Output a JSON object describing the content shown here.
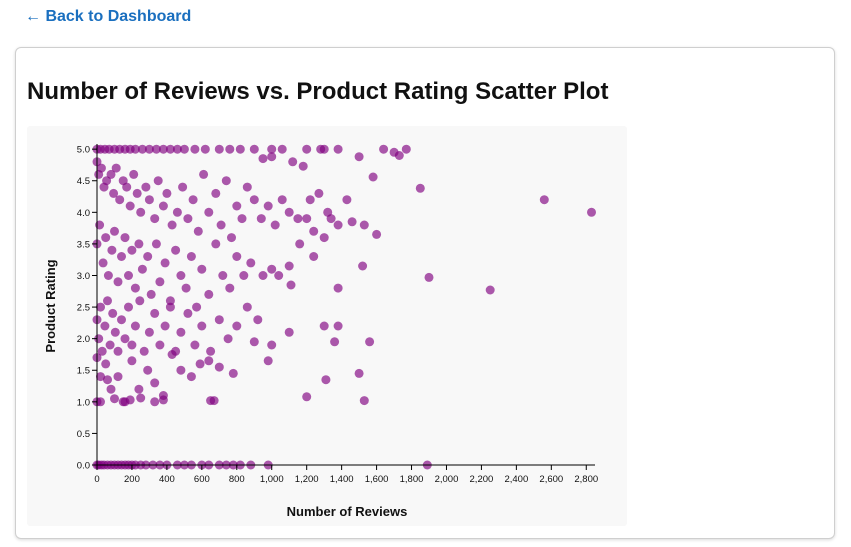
{
  "nav": {
    "back_label": "← Back to Dashboard"
  },
  "chart_data": {
    "type": "scatter",
    "title": "Number of Reviews vs. Product Rating Scatter Plot",
    "xlabel": "Number of Reviews",
    "ylabel": "Product Rating",
    "xlim": [
      0,
      2850
    ],
    "ylim": [
      0,
      5.05
    ],
    "x_ticks": [
      0,
      200,
      400,
      600,
      800,
      1000,
      1200,
      1400,
      1600,
      1800,
      2000,
      2200,
      2400,
      2600,
      2800
    ],
    "x_tick_labels": [
      "0",
      "200",
      "400",
      "600",
      "800",
      "1,000",
      "1,200",
      "1,400",
      "1,600",
      "1,800",
      "2,000",
      "2,200",
      "2,400",
      "2,600",
      "2,800"
    ],
    "y_ticks": [
      0,
      0.5,
      1,
      1.5,
      2,
      2.5,
      3,
      3.5,
      4,
      4.5,
      5
    ],
    "y_tick_labels": [
      "0.0",
      "0.5",
      "1.0",
      "1.5",
      "2.0",
      "2.5",
      "3.0",
      "3.5",
      "4.0",
      "4.5",
      "5.0"
    ],
    "grid": false,
    "point_color": "#800080",
    "background_color": "#f8f8f8",
    "points": [
      [
        0,
        5.0
      ],
      [
        20,
        5.0
      ],
      [
        45,
        5.0
      ],
      [
        70,
        5.0
      ],
      [
        100,
        5.0
      ],
      [
        130,
        5.0
      ],
      [
        160,
        5.0
      ],
      [
        190,
        5.0
      ],
      [
        220,
        5.0
      ],
      [
        260,
        5.0
      ],
      [
        300,
        5.0
      ],
      [
        340,
        5.0
      ],
      [
        380,
        5.0
      ],
      [
        420,
        5.0
      ],
      [
        460,
        5.0
      ],
      [
        500,
        5.0
      ],
      [
        560,
        5.0
      ],
      [
        620,
        5.0
      ],
      [
        700,
        5.0
      ],
      [
        760,
        5.0
      ],
      [
        820,
        5.0
      ],
      [
        900,
        5.0
      ],
      [
        1000,
        5.0
      ],
      [
        1060,
        5.0
      ],
      [
        1200,
        5.0
      ],
      [
        1280,
        5.0
      ],
      [
        1300,
        5.0
      ],
      [
        1380,
        5.0
      ],
      [
        1640,
        5.0
      ],
      [
        1700,
        4.95
      ],
      [
        1770,
        5.0
      ],
      [
        1730,
        4.9
      ],
      [
        1500,
        4.88
      ],
      [
        1120,
        4.8
      ],
      [
        1000,
        4.88
      ],
      [
        950,
        4.85
      ],
      [
        1180,
        4.73
      ],
      [
        1580,
        4.56
      ],
      [
        1850,
        4.38
      ],
      [
        1270,
        4.3
      ],
      [
        1220,
        4.2
      ],
      [
        1430,
        4.2
      ],
      [
        2560,
        4.2
      ],
      [
        2830,
        4.0
      ],
      [
        0,
        4.8
      ],
      [
        10,
        4.6
      ],
      [
        25,
        4.7
      ],
      [
        40,
        4.4
      ],
      [
        55,
        4.5
      ],
      [
        80,
        4.6
      ],
      [
        95,
        4.3
      ],
      [
        110,
        4.7
      ],
      [
        130,
        4.2
      ],
      [
        150,
        4.5
      ],
      [
        170,
        4.4
      ],
      [
        190,
        4.1
      ],
      [
        210,
        4.6
      ],
      [
        230,
        4.3
      ],
      [
        250,
        4.0
      ],
      [
        280,
        4.4
      ],
      [
        300,
        4.2
      ],
      [
        330,
        3.9
      ],
      [
        350,
        4.5
      ],
      [
        380,
        4.1
      ],
      [
        400,
        4.3
      ],
      [
        430,
        3.8
      ],
      [
        460,
        4.0
      ],
      [
        490,
        4.4
      ],
      [
        520,
        3.9
      ],
      [
        550,
        4.2
      ],
      [
        580,
        3.7
      ],
      [
        610,
        4.6
      ],
      [
        640,
        4.0
      ],
      [
        680,
        4.3
      ],
      [
        710,
        3.8
      ],
      [
        740,
        4.5
      ],
      [
        770,
        3.6
      ],
      [
        800,
        4.1
      ],
      [
        830,
        3.9
      ],
      [
        860,
        4.4
      ],
      [
        900,
        4.2
      ],
      [
        940,
        3.9
      ],
      [
        980,
        4.1
      ],
      [
        1020,
        3.8
      ],
      [
        1060,
        4.2
      ],
      [
        1100,
        4.0
      ],
      [
        1150,
        3.9
      ],
      [
        1240,
        3.7
      ],
      [
        1300,
        3.6
      ],
      [
        1340,
        3.9
      ],
      [
        1380,
        3.8
      ],
      [
        1460,
        3.85
      ],
      [
        1530,
        3.8
      ],
      [
        1600,
        3.65
      ],
      [
        1320,
        4.0
      ],
      [
        1200,
        3.9
      ],
      [
        0,
        3.5
      ],
      [
        15,
        3.8
      ],
      [
        35,
        3.2
      ],
      [
        50,
        3.6
      ],
      [
        65,
        3.0
      ],
      [
        85,
        3.4
      ],
      [
        100,
        3.7
      ],
      [
        120,
        2.9
      ],
      [
        140,
        3.3
      ],
      [
        160,
        3.6
      ],
      [
        180,
        3.0
      ],
      [
        200,
        3.4
      ],
      [
        220,
        2.8
      ],
      [
        240,
        3.5
      ],
      [
        260,
        3.1
      ],
      [
        290,
        3.3
      ],
      [
        310,
        2.7
      ],
      [
        340,
        3.5
      ],
      [
        360,
        2.9
      ],
      [
        390,
        3.2
      ],
      [
        420,
        2.6
      ],
      [
        450,
        3.4
      ],
      [
        480,
        3.0
      ],
      [
        510,
        2.8
      ],
      [
        540,
        3.3
      ],
      [
        570,
        2.5
      ],
      [
        600,
        3.1
      ],
      [
        640,
        2.7
      ],
      [
        680,
        3.5
      ],
      [
        720,
        3.0
      ],
      [
        760,
        2.8
      ],
      [
        800,
        3.3
      ],
      [
        840,
        3.0
      ],
      [
        880,
        3.2
      ],
      [
        950,
        3.0
      ],
      [
        1000,
        3.1
      ],
      [
        1040,
        3.0
      ],
      [
        1100,
        3.15
      ],
      [
        1160,
        3.5
      ],
      [
        1240,
        3.3
      ],
      [
        1520,
        3.15
      ],
      [
        1380,
        2.8
      ],
      [
        1110,
        2.85
      ],
      [
        1900,
        2.97
      ],
      [
        2250,
        2.77
      ],
      [
        0,
        2.3
      ],
      [
        10,
        2.0
      ],
      [
        20,
        2.5
      ],
      [
        30,
        1.8
      ],
      [
        45,
        2.2
      ],
      [
        60,
        2.6
      ],
      [
        75,
        1.9
      ],
      [
        90,
        2.4
      ],
      [
        105,
        2.1
      ],
      [
        120,
        1.8
      ],
      [
        140,
        2.3
      ],
      [
        160,
        2.0
      ],
      [
        180,
        2.5
      ],
      [
        200,
        1.9
      ],
      [
        220,
        2.2
      ],
      [
        245,
        2.6
      ],
      [
        270,
        1.8
      ],
      [
        300,
        2.1
      ],
      [
        330,
        2.4
      ],
      [
        360,
        1.9
      ],
      [
        390,
        2.2
      ],
      [
        420,
        2.5
      ],
      [
        450,
        1.8
      ],
      [
        480,
        2.1
      ],
      [
        520,
        2.4
      ],
      [
        560,
        1.9
      ],
      [
        600,
        2.2
      ],
      [
        650,
        1.8
      ],
      [
        700,
        2.3
      ],
      [
        750,
        2.0
      ],
      [
        800,
        2.2
      ],
      [
        860,
        2.5
      ],
      [
        900,
        1.95
      ],
      [
        920,
        2.3
      ],
      [
        1000,
        1.9
      ],
      [
        1100,
        2.1
      ],
      [
        1300,
        2.2
      ],
      [
        1380,
        2.2
      ],
      [
        1360,
        1.95
      ],
      [
        1560,
        1.95
      ],
      [
        980,
        1.65
      ],
      [
        0,
        1.7
      ],
      [
        20,
        1.4
      ],
      [
        50,
        1.6
      ],
      [
        80,
        1.2
      ],
      [
        120,
        1.4
      ],
      [
        160,
        1.0
      ],
      [
        200,
        1.65
      ],
      [
        240,
        1.2
      ],
      [
        290,
        1.5
      ],
      [
        330,
        1.3
      ],
      [
        380,
        1.1
      ],
      [
        430,
        1.75
      ],
      [
        480,
        1.5
      ],
      [
        540,
        1.4
      ],
      [
        590,
        1.6
      ],
      [
        640,
        1.65
      ],
      [
        700,
        1.55
      ],
      [
        780,
        1.45
      ],
      [
        1310,
        1.35
      ],
      [
        1500,
        1.45
      ],
      [
        1200,
        1.08
      ],
      [
        1530,
        1.02
      ],
      [
        0,
        1.0
      ],
      [
        20,
        1.0
      ],
      [
        60,
        1.35
      ],
      [
        100,
        1.05
      ],
      [
        150,
        1.0
      ],
      [
        190,
        1.03
      ],
      [
        250,
        1.06
      ],
      [
        330,
        1.0
      ],
      [
        380,
        1.03
      ],
      [
        650,
        1.02
      ],
      [
        670,
        1.02
      ],
      [
        0,
        0.0
      ],
      [
        10,
        0.0
      ],
      [
        25,
        0.0
      ],
      [
        40,
        0.0
      ],
      [
        60,
        0.0
      ],
      [
        80,
        0.0
      ],
      [
        100,
        0.0
      ],
      [
        120,
        0.0
      ],
      [
        140,
        0.0
      ],
      [
        160,
        0.0
      ],
      [
        180,
        0.0
      ],
      [
        200,
        0.0
      ],
      [
        220,
        0.0
      ],
      [
        250,
        0.0
      ],
      [
        280,
        0.0
      ],
      [
        320,
        0.0
      ],
      [
        360,
        0.0
      ],
      [
        400,
        0.0
      ],
      [
        460,
        0.0
      ],
      [
        500,
        0.0
      ],
      [
        540,
        0.0
      ],
      [
        600,
        0.0
      ],
      [
        640,
        0.0
      ],
      [
        700,
        0.0
      ],
      [
        740,
        0.0
      ],
      [
        780,
        0.0
      ],
      [
        820,
        0.0
      ],
      [
        880,
        0.0
      ],
      [
        980,
        0.0
      ],
      [
        1890,
        0.0
      ]
    ]
  }
}
